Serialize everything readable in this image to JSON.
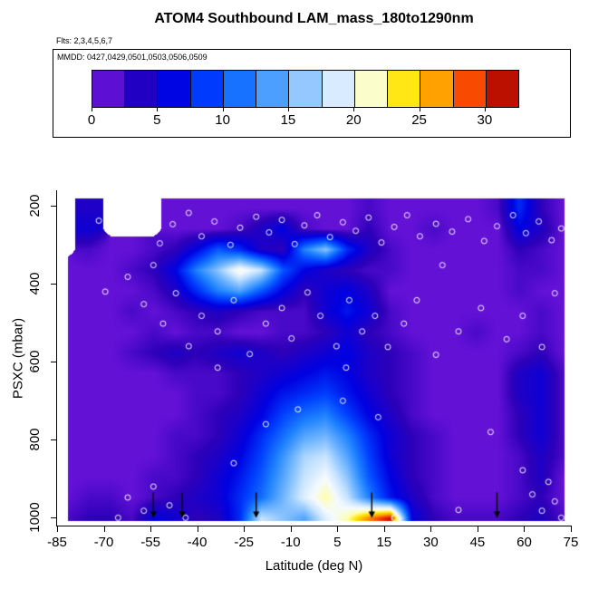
{
  "header": {
    "title": "ATOM4 Southbound LAM_mass_180to1290nm",
    "flights": "Flts: 2,3,4,5,6,7"
  },
  "legend": {
    "dates_label": "MMDD: 0427,0429,0501,0503,0506,0509",
    "ticks": [
      0,
      5,
      10,
      15,
      20,
      25,
      30
    ],
    "range": [
      0,
      32.5
    ],
    "segments": 13
  },
  "axes": {
    "x_label": "Latitude (deg N)",
    "y_label": "PSXC (mbar)",
    "x_ticks": [
      "-85",
      "-70",
      "-55",
      "-40",
      "-25",
      "-10",
      "5",
      "15",
      "30",
      "45",
      "60",
      "75"
    ],
    "y_ticks": [
      "200",
      "400",
      "600",
      "800",
      "1000"
    ]
  },
  "chart_data": {
    "type": "heatmap",
    "title": "ATOM4 Southbound LAM_mass_180to1290nm",
    "xlabel": "Latitude (deg N)",
    "ylabel": "PSXC (mbar)",
    "x_range": [
      -85,
      75
    ],
    "y_range_mbar": [
      180,
      1020
    ],
    "y_axis_inverted": true,
    "value_range": [
      0,
      32.5
    ],
    "colorbar_ticks": [
      0,
      5,
      10,
      15,
      20,
      25,
      30
    ],
    "lat_bin_centers": [
      -81.7,
      -75,
      -68.3,
      -61.7,
      -55,
      -48.3,
      -41.7,
      -35,
      -28.3,
      -21.7,
      -15,
      -8.3,
      -1.7,
      5,
      11.7,
      18.3,
      25,
      31.7,
      38.3,
      45,
      51.7,
      58.3,
      65,
      71.7
    ],
    "pressure_bin_centers": [
      206,
      259,
      311,
      364,
      416,
      469,
      521,
      574,
      626,
      679,
      731,
      784,
      836,
      889,
      941,
      994
    ],
    "values": [
      [
        null,
        4,
        null,
        null,
        null,
        1,
        1,
        1,
        1,
        1,
        1,
        1,
        1,
        1,
        2,
        1,
        1,
        1,
        1,
        1,
        2,
        8,
        3,
        1
      ],
      [
        null,
        5,
        null,
        null,
        null,
        1,
        1,
        1,
        2,
        4,
        6,
        2,
        1,
        1,
        3,
        1,
        1,
        2,
        1,
        1,
        1,
        6,
        4,
        1
      ],
      [
        null,
        2,
        1,
        1,
        2,
        3,
        6,
        10,
        8,
        4,
        3,
        12,
        16,
        8,
        4,
        2,
        1,
        1,
        1,
        1,
        1,
        3,
        2,
        1
      ],
      [
        1,
        1,
        1,
        2,
        3,
        6,
        12,
        16,
        21,
        18,
        10,
        6,
        4,
        3,
        2,
        2,
        1,
        1,
        1,
        1,
        1,
        2,
        2,
        1
      ],
      [
        1,
        1,
        1,
        1,
        2,
        4,
        8,
        12,
        14,
        10,
        6,
        3,
        5,
        6,
        4,
        1,
        1,
        1,
        1,
        1,
        1,
        2,
        1,
        1
      ],
      [
        1,
        1,
        1,
        2,
        1,
        2,
        3,
        4,
        3,
        2,
        2,
        2,
        5,
        7,
        5,
        2,
        1,
        1,
        1,
        1,
        1,
        1,
        2,
        1
      ],
      [
        1,
        1,
        1,
        1,
        2,
        1,
        2,
        2,
        1,
        1,
        2,
        2,
        3,
        5,
        3,
        2,
        1,
        1,
        1,
        2,
        1,
        1,
        2,
        1
      ],
      [
        1,
        1,
        1,
        2,
        3,
        4,
        3,
        4,
        5,
        4,
        3,
        4,
        5,
        6,
        4,
        3,
        2,
        1,
        1,
        1,
        1,
        2,
        3,
        1
      ],
      [
        1,
        1,
        1,
        1,
        1,
        2,
        2,
        2,
        3,
        4,
        5,
        6,
        7,
        6,
        4,
        3,
        2,
        1,
        1,
        1,
        1,
        4,
        5,
        2
      ],
      [
        1,
        1,
        1,
        1,
        1,
        1,
        2,
        2,
        3,
        5,
        7,
        8,
        9,
        7,
        5,
        3,
        2,
        1,
        1,
        1,
        1,
        4,
        5,
        2
      ],
      [
        1,
        1,
        1,
        1,
        1,
        1,
        2,
        3,
        4,
        6,
        9,
        11,
        12,
        9,
        6,
        4,
        2,
        1,
        1,
        1,
        1,
        3,
        5,
        2
      ],
      [
        1,
        1,
        1,
        1,
        1,
        2,
        2,
        3,
        5,
        8,
        11,
        14,
        15,
        12,
        8,
        5,
        3,
        2,
        1,
        1,
        1,
        3,
        5,
        2
      ],
      [
        1,
        1,
        1,
        1,
        1,
        2,
        3,
        4,
        6,
        9,
        13,
        17,
        18,
        14,
        9,
        5,
        3,
        2,
        1,
        1,
        1,
        2,
        4,
        2
      ],
      [
        1,
        1,
        1,
        1,
        2,
        2,
        3,
        5,
        7,
        10,
        14,
        18,
        20,
        16,
        10,
        6,
        3,
        2,
        1,
        1,
        1,
        2,
        4,
        1
      ],
      [
        1,
        2,
        2,
        1,
        2,
        3,
        4,
        5,
        8,
        11,
        15,
        19,
        22,
        18,
        12,
        7,
        4,
        2,
        1,
        1,
        1,
        2,
        3,
        1
      ],
      [
        2,
        3,
        3,
        2,
        6,
        5,
        3,
        4,
        8,
        18,
        16,
        14,
        19,
        22,
        27,
        31,
        6,
        3,
        2,
        2,
        2,
        3,
        4,
        2
      ]
    ],
    "colormap": [
      [
        0,
        [
          127,
          26,
          229
        ]
      ],
      [
        3,
        [
          45,
          0,
          185
        ]
      ],
      [
        6,
        [
          0,
          0,
          225
        ]
      ],
      [
        9,
        [
          0,
          64,
          255
        ]
      ],
      [
        12,
        [
          30,
          130,
          255
        ]
      ],
      [
        15,
        [
          110,
          180,
          255
        ]
      ],
      [
        18,
        [
          200,
          228,
          255
        ]
      ],
      [
        20,
        [
          245,
          250,
          255
        ]
      ],
      [
        22,
        [
          255,
          255,
          170
        ]
      ],
      [
        24,
        [
          255,
          228,
          0
        ]
      ],
      [
        26,
        [
          255,
          170,
          0
        ]
      ],
      [
        28,
        [
          255,
          100,
          0
        ]
      ],
      [
        30,
        [
          235,
          30,
          0
        ]
      ],
      [
        32.5,
        [
          139,
          0,
          0
        ]
      ]
    ],
    "markers": [
      [
        -72,
        238
      ],
      [
        -67,
        210
      ],
      [
        -63,
        262
      ],
      [
        -58,
        228
      ],
      [
        -53,
        296
      ],
      [
        -49,
        247
      ],
      [
        -44,
        218
      ],
      [
        -40,
        278
      ],
      [
        -36,
        240
      ],
      [
        -31,
        300
      ],
      [
        -28,
        256
      ],
      [
        -23,
        228
      ],
      [
        -19,
        268
      ],
      [
        -15,
        236
      ],
      [
        -11,
        298
      ],
      [
        -8,
        250
      ],
      [
        -4,
        224
      ],
      [
        0,
        280
      ],
      [
        4,
        242
      ],
      [
        8,
        264
      ],
      [
        12,
        230
      ],
      [
        16,
        294
      ],
      [
        20,
        254
      ],
      [
        24,
        224
      ],
      [
        28,
        278
      ],
      [
        33,
        246
      ],
      [
        38,
        266
      ],
      [
        43,
        234
      ],
      [
        48,
        290
      ],
      [
        52,
        252
      ],
      [
        57,
        224
      ],
      [
        61,
        270
      ],
      [
        65,
        240
      ],
      [
        69,
        288
      ],
      [
        72,
        258
      ],
      [
        -70,
        420
      ],
      [
        -63,
        382
      ],
      [
        -58,
        452
      ],
      [
        -52,
        502
      ],
      [
        -48,
        424
      ],
      [
        -44,
        560
      ],
      [
        -40,
        482
      ],
      [
        -35,
        522
      ],
      [
        -30,
        442
      ],
      [
        -25,
        580
      ],
      [
        -20,
        502
      ],
      [
        -15,
        462
      ],
      [
        -12,
        540
      ],
      [
        -7,
        422
      ],
      [
        -3,
        482
      ],
      [
        2,
        560
      ],
      [
        6,
        442
      ],
      [
        10,
        522
      ],
      [
        14,
        482
      ],
      [
        18,
        562
      ],
      [
        23,
        502
      ],
      [
        27,
        442
      ],
      [
        33,
        582
      ],
      [
        40,
        522
      ],
      [
        47,
        462
      ],
      [
        55,
        542
      ],
      [
        60,
        482
      ],
      [
        66,
        562
      ],
      [
        70,
        424
      ],
      [
        -55,
        352
      ],
      [
        -35,
        615
      ],
      [
        5,
        615
      ],
      [
        35,
        352
      ],
      [
        -63,
        948
      ],
      [
        -58,
        982
      ],
      [
        -55,
        920
      ],
      [
        -50,
        968
      ],
      [
        -45,
        1000
      ],
      [
        -66,
        1000
      ],
      [
        -20,
        760
      ],
      [
        -10,
        722
      ],
      [
        4,
        700
      ],
      [
        15,
        742
      ],
      [
        60,
        878
      ],
      [
        63,
        940
      ],
      [
        66,
        982
      ],
      [
        68,
        908
      ],
      [
        70,
        958
      ],
      [
        72,
        1000
      ],
      [
        40,
        980
      ],
      [
        20,
        1000
      ],
      [
        -30,
        860
      ],
      [
        50,
        780
      ]
    ],
    "arrows_lat": [
      -55,
      -46,
      -23,
      13,
      52
    ]
  }
}
